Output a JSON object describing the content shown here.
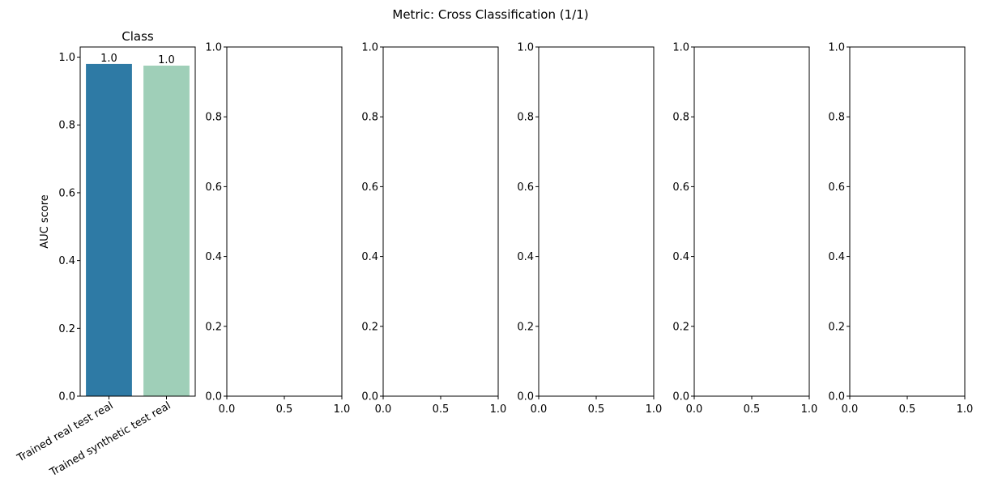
{
  "figure": {
    "suptitle": "Metric: Cross Classification (1/1)"
  },
  "chart_data": [
    {
      "type": "bar",
      "title": "Class",
      "xlabel": "",
      "ylabel": "AUC score",
      "categories": [
        "Trained real test real",
        "Trained synthetic test real"
      ],
      "values": [
        0.98,
        0.975
      ],
      "data_labels": [
        "1.0",
        "1.0"
      ],
      "colors": [
        "#2e7aa5",
        "#9fcfb8"
      ],
      "ylim": [
        0,
        1.03
      ],
      "yticks": [
        "0.0",
        "0.2",
        "0.4",
        "0.6",
        "0.8",
        "1.0"
      ],
      "grid": false
    },
    {
      "type": "bar",
      "title": "",
      "xlabel": "",
      "ylabel": "",
      "categories": [],
      "values": [],
      "xlim": [
        0,
        1
      ],
      "ylim": [
        0,
        1
      ],
      "xticks": [
        "0.0",
        "0.5",
        "1.0"
      ],
      "yticks": [
        "0.0",
        "0.2",
        "0.4",
        "0.6",
        "0.8",
        "1.0"
      ]
    },
    {
      "type": "bar",
      "title": "",
      "xlabel": "",
      "ylabel": "",
      "categories": [],
      "values": [],
      "xlim": [
        0,
        1
      ],
      "ylim": [
        0,
        1
      ],
      "xticks": [
        "0.0",
        "0.5",
        "1.0"
      ],
      "yticks": [
        "0.0",
        "0.2",
        "0.4",
        "0.6",
        "0.8",
        "1.0"
      ]
    },
    {
      "type": "bar",
      "title": "",
      "xlabel": "",
      "ylabel": "",
      "categories": [],
      "values": [],
      "xlim": [
        0,
        1
      ],
      "ylim": [
        0,
        1
      ],
      "xticks": [
        "0.0",
        "0.5",
        "1.0"
      ],
      "yticks": [
        "0.0",
        "0.2",
        "0.4",
        "0.6",
        "0.8",
        "1.0"
      ]
    },
    {
      "type": "bar",
      "title": "",
      "xlabel": "",
      "ylabel": "",
      "categories": [],
      "values": [],
      "xlim": [
        0,
        1
      ],
      "ylim": [
        0,
        1
      ],
      "xticks": [
        "0.0",
        "0.5",
        "1.0"
      ],
      "yticks": [
        "0.0",
        "0.2",
        "0.4",
        "0.6",
        "0.8",
        "1.0"
      ]
    },
    {
      "type": "bar",
      "title": "",
      "xlabel": "",
      "ylabel": "",
      "categories": [],
      "values": [],
      "xlim": [
        0,
        1
      ],
      "ylim": [
        0,
        1
      ],
      "xticks": [
        "0.0",
        "0.5",
        "1.0"
      ],
      "yticks": [
        "0.0",
        "0.2",
        "0.4",
        "0.6",
        "0.8",
        "1.0"
      ]
    }
  ]
}
